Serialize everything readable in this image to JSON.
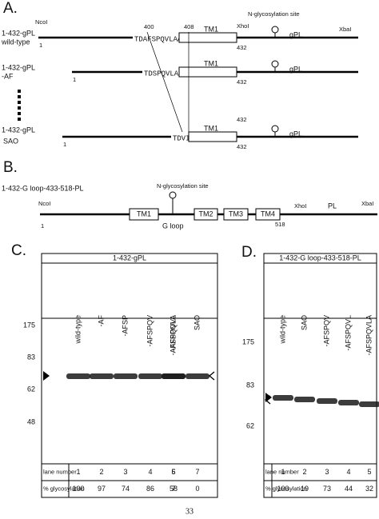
{
  "panel_a": {
    "label": "A.",
    "ncoi": "NcoI",
    "xhoi": "XhoI",
    "xbai": "XbaI",
    "glyco_site": "N-glycosylation site",
    "pos_400": "400",
    "pos_408": "408",
    "constructs": [
      {
        "name": "1-432-gPL",
        "variant": "wild-type",
        "start": "1",
        "sequence": "TDAFSPQVLAAVI",
        "tm": "TM1",
        "end": "432",
        "tail": "gPL"
      },
      {
        "name": "1-432-gPL",
        "variant": "-AF",
        "start": "1",
        "sequence": "TDSPQVLAAVI",
        "tm": "TM1",
        "end": "432",
        "tail": "gPL"
      },
      {
        "name": "1-432-gPL",
        "variant": "SAO",
        "start": "1",
        "sequence": "TDVI",
        "tm": "TM1",
        "end_top": "432",
        "end": "432",
        "tail": "gPL"
      }
    ]
  },
  "panel_b": {
    "label": "B.",
    "name": "1-432-G loop-433-518-PL",
    "ncoi": "NcoI",
    "glyco_site": "N-glycosylation site",
    "xhoi": "XhoI",
    "xbai": "XbaI",
    "start": "1",
    "domains": [
      "TM1",
      "TM2",
      "TM3",
      "TM4"
    ],
    "loop": "G loop",
    "end": "518",
    "tail": "PL"
  },
  "panel_c": {
    "label": "C.",
    "construct": "1-432-gPL",
    "lanes": [
      "wild-type",
      "-AF",
      "-AFSP",
      "-AFSPQV",
      "-AFSPQVL",
      "-AFSPQVLA",
      "SAO"
    ],
    "markers": [
      "175",
      "83",
      "62",
      "48"
    ],
    "row_labels": [
      "lane number",
      "% glycosylation"
    ],
    "lane_numbers": [
      "1",
      "2",
      "3",
      "4",
      "5",
      "6",
      "7"
    ],
    "glycosylation": [
      "100",
      "97",
      "74",
      "86",
      "58",
      "7",
      "0"
    ]
  },
  "panel_d": {
    "label": "D.",
    "construct": "1-432-G loop-433-518-PL",
    "lanes": [
      "wild-type",
      "SAO",
      "-AFSPQV",
      "-AFSPQVL",
      "-AFSPQVLA"
    ],
    "markers": [
      "175",
      "83",
      "62"
    ],
    "row_labels": [
      "lane number",
      "% glycosylation"
    ],
    "lane_numbers": [
      "1",
      "2",
      "3",
      "4",
      "5"
    ],
    "glycosylation": [
      "100",
      "19",
      "73",
      "44",
      "32"
    ]
  },
  "page_number": "33"
}
